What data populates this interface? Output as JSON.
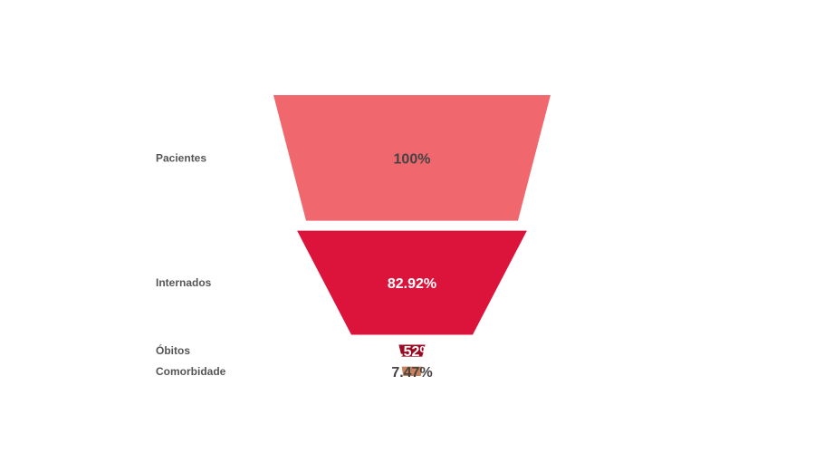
{
  "chart_data": {
    "type": "funnel",
    "title": "",
    "stages": [
      {
        "label": "Pacientes",
        "value_label": "100%",
        "percent": 100,
        "color": "#f0676e",
        "text_color": "#444444"
      },
      {
        "label": "Internados",
        "value_label": "82.92%",
        "percent": 82.92,
        "color": "#dc143c",
        "text_color": "#ffffff"
      },
      {
        "label": "Óbitos",
        "value_label": "9.52%",
        "percent": 9.52,
        "color": "#9b0a23",
        "text_color": "#ffffff"
      },
      {
        "label": "Comorbidade",
        "value_label": "7.47%",
        "percent": 7.47,
        "color": "#c9815c",
        "text_color": "#444444"
      }
    ]
  }
}
